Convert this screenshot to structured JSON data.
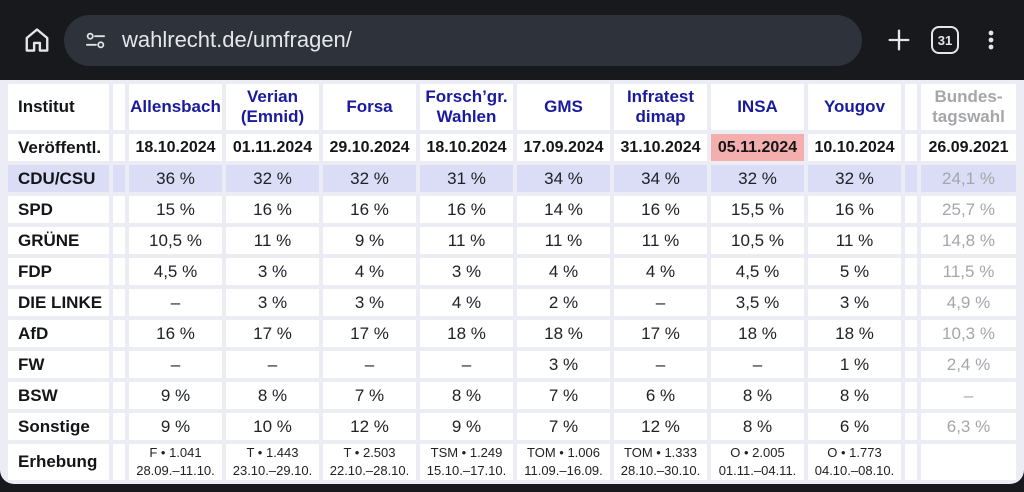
{
  "browser": {
    "url": "wahlrecht.de/umfragen/",
    "tab_count": "31",
    "icons": {
      "home": "home-icon",
      "site_settings": "tune-sliders-icon",
      "new_tab": "plus-icon",
      "tab_switcher": "tab-counter-box",
      "menu": "kebab-menu-icon"
    }
  },
  "colors": {
    "chrome_bg": "#17191d",
    "url_bar_bg": "#2e323b",
    "chrome_icon": "#e4e6e9",
    "link_blue": "#1a1a9e",
    "row_highlight": "#dbdcf5",
    "date_highlight": "#f5aeae",
    "muted_gray": "#a5a6aa",
    "table_gap": "#ecedf4"
  },
  "table": {
    "corner_label": "Institut",
    "institutes": [
      "Allensbach",
      "Verian\n(Emnid)",
      "Forsa",
      "Forsch’gr.\nWahlen",
      "GMS",
      "Infratest\ndimap",
      "INSA",
      "Yougov"
    ],
    "final_column": "Bundes-\ntagswahl",
    "release_row": {
      "label": "Veröffentl.",
      "values": [
        "18.10.2024",
        "01.11.2024",
        "29.10.2024",
        "18.10.2024",
        "17.09.2024",
        "31.10.2024",
        "05.11.2024",
        "10.10.2024"
      ],
      "highlighted_index": 6,
      "final": "26.09.2021"
    },
    "party_rows": [
      {
        "label": "CDU/CSU",
        "values": [
          "36 %",
          "32 %",
          "32 %",
          "31 %",
          "34 %",
          "34 %",
          "32 %",
          "32 %"
        ],
        "final": "24,1 %",
        "highlighted": true
      },
      {
        "label": "SPD",
        "values": [
          "15 %",
          "16 %",
          "16 %",
          "16 %",
          "14 %",
          "16 %",
          "15,5 %",
          "16 %"
        ],
        "final": "25,7 %",
        "highlighted": false
      },
      {
        "label": "GRÜNE",
        "values": [
          "10,5 %",
          "11 %",
          "9 %",
          "11 %",
          "11 %",
          "11 %",
          "10,5 %",
          "11 %"
        ],
        "final": "14,8 %",
        "highlighted": false
      },
      {
        "label": "FDP",
        "values": [
          "4,5 %",
          "3 %",
          "4 %",
          "3 %",
          "4 %",
          "4 %",
          "4,5 %",
          "5 %"
        ],
        "final": "11,5 %",
        "highlighted": false
      },
      {
        "label": "DIE LINKE",
        "values": [
          "–",
          "3 %",
          "3 %",
          "4 %",
          "2 %",
          "–",
          "3,5 %",
          "3 %"
        ],
        "final": "4,9 %",
        "highlighted": false
      },
      {
        "label": "AfD",
        "values": [
          "16 %",
          "17 %",
          "17 %",
          "18 %",
          "18 %",
          "17 %",
          "18 %",
          "18 %"
        ],
        "final": "10,3 %",
        "highlighted": false
      },
      {
        "label": "FW",
        "values": [
          "–",
          "–",
          "–",
          "–",
          "3 %",
          "–",
          "–",
          "1 %"
        ],
        "final": "2,4 %",
        "highlighted": false
      },
      {
        "label": "BSW",
        "values": [
          "9 %",
          "8 %",
          "7 %",
          "8 %",
          "7 %",
          "6 %",
          "8 %",
          "8 %"
        ],
        "final": "–",
        "highlighted": false
      },
      {
        "label": "Sonstige",
        "values": [
          "9 %",
          "10 %",
          "12 %",
          "9 %",
          "7 %",
          "12 %",
          "8 %",
          "6 %"
        ],
        "final": "6,3 %",
        "highlighted": false
      }
    ],
    "survey_row": {
      "label": "Erhebung",
      "values": [
        "F • 1.041\n28.09.–11.10.",
        "T • 1.443\n23.10.–29.10.",
        "T • 2.503\n22.10.–28.10.",
        "TSM • 1.249\n15.10.–17.10.",
        "TOM • 1.006\n11.09.–16.09.",
        "TOM • 1.333\n28.10.–30.10.",
        "O • 2.005\n01.11.–04.11.",
        "O • 1.773\n04.10.–08.10."
      ],
      "final": ""
    }
  }
}
